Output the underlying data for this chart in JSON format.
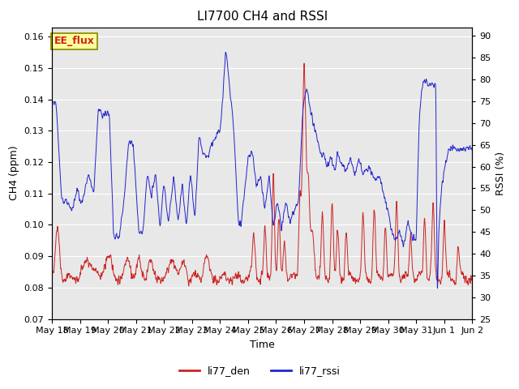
{
  "title": "LI7700 CH4 and RSSI",
  "xlabel": "Time",
  "ylabel_left": "CH4 (ppm)",
  "ylabel_right": "RSSI (%)",
  "ylim_left": [
    0.07,
    0.163
  ],
  "ylim_right": [
    25,
    92
  ],
  "yticks_left": [
    0.07,
    0.08,
    0.09,
    0.1,
    0.11,
    0.12,
    0.13,
    0.14,
    0.15,
    0.16
  ],
  "yticks_right": [
    25,
    30,
    35,
    40,
    45,
    50,
    55,
    60,
    65,
    70,
    75,
    80,
    85,
    90
  ],
  "background_color": "#ffffff",
  "plot_bg_color": "#e8e8e8",
  "grid_color": "#ffffff",
  "color_red": "#cc2222",
  "color_blue": "#2222cc",
  "legend_label_red": "li77_den",
  "legend_label_blue": "li77_rssi",
  "annotation_text": "EE_flux",
  "annotation_bg": "#ffff99",
  "annotation_border": "#888800",
  "title_fontsize": 11,
  "axis_label_fontsize": 9,
  "tick_fontsize": 8,
  "n_points": 3000,
  "date_start_day": 18,
  "date_end_day": 33,
  "xtick_days": [
    18,
    19,
    20,
    21,
    22,
    23,
    24,
    25,
    26,
    27,
    28,
    29,
    30,
    31,
    32,
    33
  ],
  "xtick_labels": [
    "May 18",
    "May 19",
    "May 20",
    "May 21",
    "May 22",
    "May 23",
    "May 24",
    "May 25",
    "May 26",
    "May 27",
    "May 28",
    "May 29",
    "May 30",
    "May 31",
    "Jun 1",
    "Jun 2"
  ]
}
